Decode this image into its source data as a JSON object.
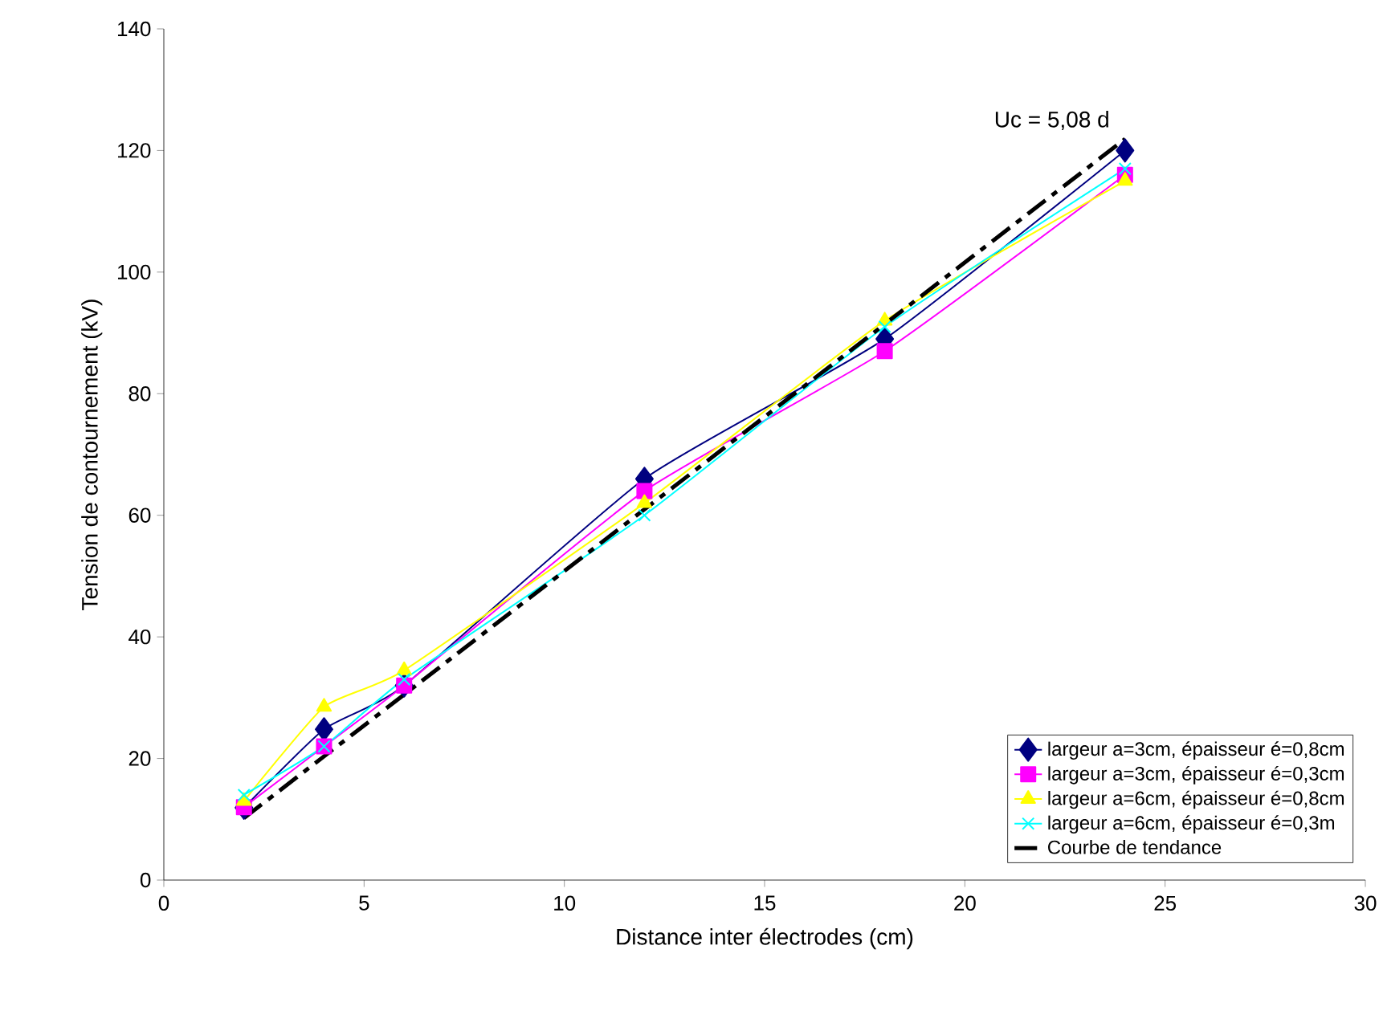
{
  "chart_data": {
    "type": "line",
    "xlabel": "Distance inter électrodes (cm)",
    "ylabel": "Tension de contournement (kV)",
    "xlim": [
      0,
      30
    ],
    "xticks": [
      0,
      5,
      10,
      15,
      20,
      25,
      30
    ],
    "ylim": [
      0,
      140
    ],
    "yticks": [
      0,
      20,
      40,
      60,
      80,
      100,
      120,
      140
    ],
    "grid": false,
    "legend": "bottom right",
    "series": [
      {
        "name": "largeur a=3cm, épaisseur é=0,8cm",
        "color": "#000080",
        "marker": "diamond",
        "x": [
          2,
          4,
          6,
          12,
          18,
          24
        ],
        "values": [
          11.9,
          24.8,
          32,
          66,
          89,
          120
        ]
      },
      {
        "name": "largeur a=3cm, épaisseur é=0,3cm",
        "color": "#ff00ff",
        "marker": "square",
        "x": [
          2,
          4,
          6,
          12,
          18,
          24
        ],
        "values": [
          12,
          22,
          32,
          64,
          87,
          116
        ]
      },
      {
        "name": "largeur a=6cm, épaisseur é=0,8cm",
        "color": "#ffff00",
        "marker": "triangle",
        "x": [
          2,
          4,
          6,
          12,
          18,
          24
        ],
        "values": [
          13,
          28.5,
          34.5,
          62,
          92,
          115
        ]
      },
      {
        "name": "largeur a=6cm, épaisseur é=0,3m",
        "color": "#00ffff",
        "marker": "cross",
        "x": [
          2,
          4,
          6,
          12,
          18,
          24
        ],
        "values": [
          14,
          22,
          33,
          60,
          91,
          117
        ]
      },
      {
        "name": "Courbe de tendance",
        "color": "#000000",
        "marker": "none",
        "line_style": "dashed",
        "x": [
          2,
          24
        ],
        "values": [
          10.2,
          121.9
        ]
      }
    ],
    "annotations": [
      {
        "text": "Uc = 5,08 d",
        "x": 24,
        "y": 121.9
      }
    ]
  }
}
